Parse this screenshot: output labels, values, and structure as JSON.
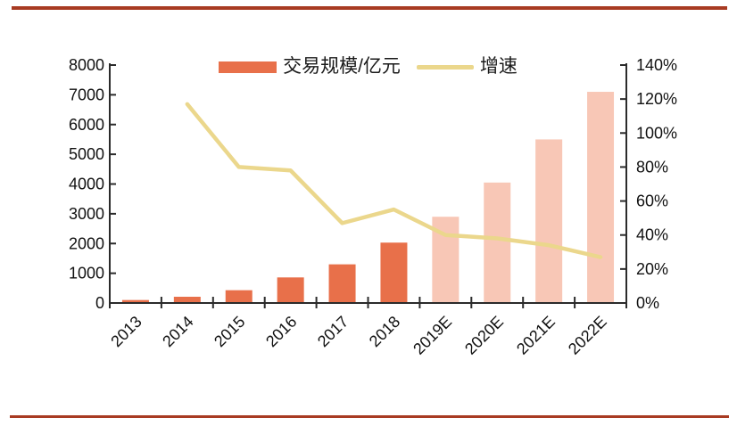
{
  "decorations": {
    "top_rule_color": "#A83B22",
    "bottom_rule_color": "#A83B22"
  },
  "axis_style": {
    "line_color": "#2b2b2b",
    "label_color": "#111111"
  },
  "chart_data": {
    "type": "bar",
    "subtype": "bar+line dual axis",
    "title": "",
    "categories": [
      "2013",
      "2014",
      "2015",
      "2016",
      "2017",
      "2018",
      "2019E",
      "2020E",
      "2021E",
      "2022E"
    ],
    "series": [
      {
        "name": "交易规模/亿元",
        "type": "bar",
        "axis": "left",
        "values": [
          100,
          210,
          430,
          860,
          1300,
          2030,
          2900,
          4050,
          5500,
          7100
        ],
        "actual_color": "#E8704A",
        "forecast_color": "#F8C7B6",
        "forecast_start_index": 6
      },
      {
        "name": "增速",
        "type": "line",
        "axis": "right",
        "unit": "%",
        "values": [
          null,
          117,
          80,
          78,
          47,
          55,
          40,
          38,
          34,
          27
        ],
        "color": "#EBD78C"
      }
    ],
    "left_axis": {
      "min": 0,
      "max": 8000,
      "step": 1000,
      "tick_labels": [
        "0",
        "1000",
        "2000",
        "3000",
        "4000",
        "5000",
        "6000",
        "7000",
        "8000"
      ]
    },
    "right_axis": {
      "min": 0,
      "max": 140,
      "step": 20,
      "tick_labels": [
        "0%",
        "20%",
        "40%",
        "60%",
        "80%",
        "100%",
        "120%",
        "140%"
      ]
    },
    "legend": {
      "position": "top-center",
      "items": [
        {
          "label": "交易规模/亿元",
          "swatch": "bar",
          "color": "#E8704A"
        },
        {
          "label": "增速",
          "swatch": "line",
          "color": "#EBD78C"
        }
      ]
    },
    "grid": false,
    "x_labels_rotation_deg": -45
  }
}
